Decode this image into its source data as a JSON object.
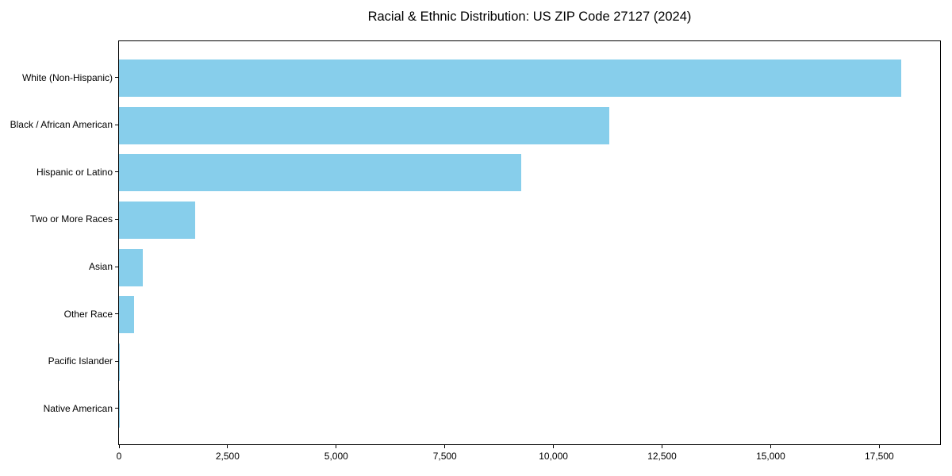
{
  "chart_data": {
    "type": "bar",
    "orientation": "horizontal",
    "title": "Racial & Ethnic Distribution: US ZIP Code 27127 (2024)",
    "categories": [
      "White (Non-Hispanic)",
      "Black / African American",
      "Hispanic or Latino",
      "Two or More Races",
      "Asian",
      "Other Race",
      "Pacific Islander",
      "Native American"
    ],
    "values": [
      18000,
      11280,
      9260,
      1750,
      550,
      350,
      25,
      10
    ],
    "xlabel": "",
    "ylabel": "",
    "xlim": [
      0,
      18900
    ],
    "xticks": [
      0,
      2500,
      5000,
      7500,
      10000,
      12500,
      15000,
      17500
    ],
    "xtick_labels": [
      "0",
      "2,500",
      "5,000",
      "7,500",
      "10,000",
      "12,500",
      "15,000",
      "17,500"
    ],
    "bar_color": "#87CEEB",
    "frame_color": "#000000",
    "text_color": "#000000",
    "grid": false,
    "legend": null
  }
}
